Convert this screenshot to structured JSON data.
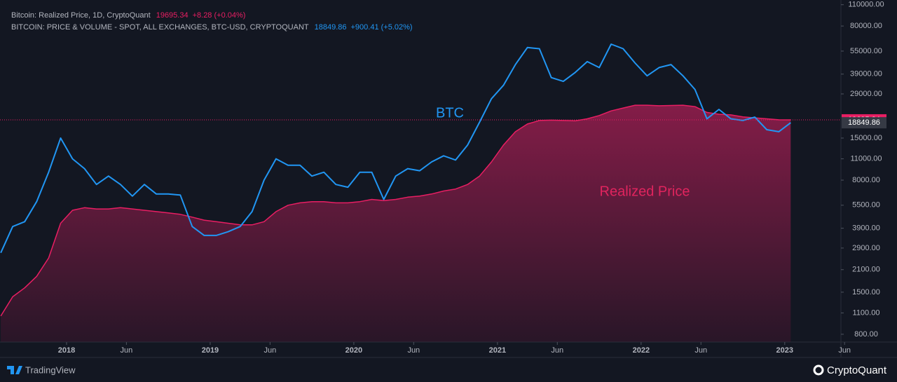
{
  "chart_data": {
    "type": "line",
    "background": "#131722",
    "log_scale": true,
    "series": [
      {
        "name": "Bitcoin: Realized Price, 1D, CryptoQuant",
        "color": "#e91e63",
        "fill": true,
        "last_label": "19695.34",
        "change": "+8.28 (+0.04%)",
        "values": [
          1050,
          1400,
          1600,
          1900,
          2500,
          4200,
          5100,
          5300,
          5200,
          5200,
          5300,
          5200,
          5100,
          5000,
          4900,
          4800,
          4600,
          4400,
          4300,
          4200,
          4100,
          4100,
          4300,
          5000,
          5500,
          5700,
          5800,
          5800,
          5700,
          5700,
          5800,
          6000,
          5900,
          6000,
          6200,
          6300,
          6500,
          6800,
          7000,
          7500,
          8500,
          10500,
          13500,
          16500,
          18500,
          19500,
          19600,
          19500,
          19400,
          20000,
          21000,
          22500,
          23500,
          24500,
          24500,
          24300,
          24400,
          24500,
          24000,
          22000,
          21400,
          21200,
          20600,
          20300,
          20000,
          19700,
          19695.34
        ]
      },
      {
        "name": "BITCOIN: PRICE & VOLUME - SPOT, ALL EXCHANGES, BTC-USD, CRYPTOQUANT",
        "color": "#2196f3",
        "fill": false,
        "last_label": "18849.86",
        "change": "+900.41 (+5.02%)",
        "values": [
          2700,
          4000,
          4300,
          5800,
          9000,
          15000,
          11000,
          9500,
          7500,
          8500,
          7500,
          6300,
          7500,
          6500,
          6500,
          6400,
          4000,
          3500,
          3500,
          3700,
          4000,
          5000,
          8000,
          11000,
          10000,
          10000,
          8500,
          9000,
          7500,
          7200,
          9000,
          9000,
          6000,
          8500,
          9500,
          9200,
          10500,
          11500,
          10800,
          13500,
          19000,
          27000,
          33000,
          45000,
          58000,
          57000,
          37000,
          35000,
          40000,
          47000,
          43000,
          61000,
          57000,
          46000,
          38000,
          43000,
          45000,
          38000,
          31000,
          20000,
          23000,
          20000,
          19500,
          20500,
          17000,
          16500,
          18849.86
        ]
      }
    ],
    "x": [
      "2017-07",
      "2017-08",
      "2017-09",
      "2017-10",
      "2017-11",
      "2017-12",
      "2018-01",
      "2018-02",
      "2018-03",
      "2018-04",
      "2018-05",
      "2018-06",
      "2018-07",
      "2018-08",
      "2018-09",
      "2018-10",
      "2018-11",
      "2018-12",
      "2019-01",
      "2019-02",
      "2019-03",
      "2019-04",
      "2019-05",
      "2019-06",
      "2019-07",
      "2019-08",
      "2019-09",
      "2019-10",
      "2019-11",
      "2019-12",
      "2020-01",
      "2020-02",
      "2020-03",
      "2020-04",
      "2020-05",
      "2020-06",
      "2020-07",
      "2020-08",
      "2020-09",
      "2020-10",
      "2020-11",
      "2020-12",
      "2021-01",
      "2021-02",
      "2021-03",
      "2021-04",
      "2021-05",
      "2021-06",
      "2021-07",
      "2021-08",
      "2021-09",
      "2021-10",
      "2021-11",
      "2021-12",
      "2022-01",
      "2022-02",
      "2022-03",
      "2022-04",
      "2022-05",
      "2022-06",
      "2022-07",
      "2022-08",
      "2022-09",
      "2022-10",
      "2022-11",
      "2022-12",
      "2023-01"
    ],
    "xticks": [
      {
        "value": "2018-01",
        "label": "2018"
      },
      {
        "value": "2018-06",
        "label": "Jun"
      },
      {
        "value": "2019-01",
        "label": "2019"
      },
      {
        "value": "2019-06",
        "label": "Jun"
      },
      {
        "value": "2020-01",
        "label": "2020"
      },
      {
        "value": "2020-06",
        "label": "Jun"
      },
      {
        "value": "2021-01",
        "label": "2021"
      },
      {
        "value": "2021-06",
        "label": "Jun"
      },
      {
        "value": "2022-01",
        "label": "2022"
      },
      {
        "value": "2022-06",
        "label": "Jun"
      },
      {
        "value": "2023-01",
        "label": "2023"
      },
      {
        "value": "2023-06",
        "label": "Jun"
      }
    ],
    "ylim": [
      712,
      118000
    ],
    "yticks": [
      {
        "value": 800,
        "label": "800.00"
      },
      {
        "value": 1100,
        "label": "1100.00"
      },
      {
        "value": 1500,
        "label": "1500.00"
      },
      {
        "value": 2100,
        "label": "2100.00"
      },
      {
        "value": 2900,
        "label": "2900.00"
      },
      {
        "value": 3900,
        "label": "3900.00"
      },
      {
        "value": 5500,
        "label": "5500.00"
      },
      {
        "value": 8000,
        "label": "8000.00"
      },
      {
        "value": 11000,
        "label": "11000.00"
      },
      {
        "value": 15000,
        "label": "15000.00"
      },
      {
        "value": 29000,
        "label": "29000.00"
      },
      {
        "value": 39000,
        "label": "39000.00"
      },
      {
        "value": 55000,
        "label": "55000.00"
      },
      {
        "value": 80000,
        "label": "80000.00"
      },
      {
        "value": 110000,
        "label": "110000.00"
      }
    ],
    "annotations": [
      {
        "text": "BTC",
        "series": 1
      },
      {
        "text": "Realized Price",
        "series": 0
      }
    ],
    "footer": {
      "left": "TradingView",
      "right": "CryptoQuant"
    }
  }
}
